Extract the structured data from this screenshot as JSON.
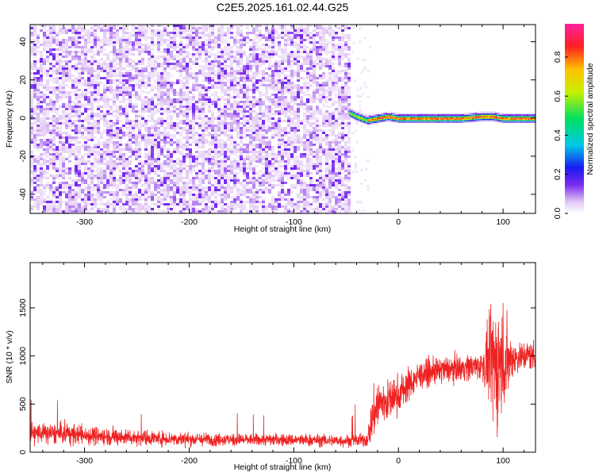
{
  "title": "C2E5.2025.161.02.44.G25",
  "chart_data": [
    {
      "type": "heatmap",
      "xlabel": "Height of straight line (km)",
      "ylabel": "Frequency (Hz)",
      "xlim": [
        -352,
        131
      ],
      "ylim": [
        -50,
        49
      ],
      "xticks": [
        -300,
        -200,
        -100,
        0,
        100
      ],
      "yticks": [
        -40,
        -20,
        0,
        20,
        40
      ],
      "xtick_labels": [
        "-300",
        "-200",
        "-100",
        "0",
        "100"
      ],
      "ytick_labels": [
        "-40",
        "-20",
        "0",
        "20",
        "40"
      ],
      "colorbar": {
        "label": "Normalized spectral amplitude",
        "range": [
          0,
          0.97
        ],
        "ticks": [
          0.0,
          0.2,
          0.4,
          0.6,
          0.8
        ],
        "tick_labels": [
          "0.0",
          "0.2",
          "0.4",
          "0.6",
          "0.8"
        ]
      },
      "regions": [
        {
          "x_range": [
            -352,
            -47
          ],
          "freq_range": [
            -50,
            49
          ],
          "amplitude_range": [
            0.0,
            0.15
          ]
        },
        {
          "x_range": [
            -47,
            131
          ],
          "freq_range": [
            -4,
            4
          ],
          "amplitude_range": [
            0.2,
            0.97
          ]
        }
      ],
      "ridge": {
        "x": [
          -47,
          -40,
          -30,
          -20,
          -10,
          0,
          10,
          20,
          40,
          60,
          80,
          90,
          100,
          110,
          131
        ],
        "freq": [
          3,
          1,
          -1,
          0,
          1,
          0,
          0,
          0,
          0,
          0,
          1,
          1,
          0,
          0,
          0
        ]
      },
      "grid": false
    },
    {
      "type": "line",
      "xlabel": "Height of straight line (km)",
      "ylabel": "SNR (10 * v/v)",
      "xlim": [
        -352,
        131
      ],
      "ylim": [
        0,
        1970
      ],
      "xticks": [
        -300,
        -200,
        -100,
        0,
        100
      ],
      "yticks": [
        0,
        500,
        1000,
        1500
      ],
      "xtick_labels": [
        "-300",
        "-200",
        "-100",
        "0",
        "100"
      ],
      "ytick_labels": [
        "0",
        "500",
        "1000",
        "1500"
      ],
      "color": "#ee2222",
      "x": [
        -352,
        -320,
        -280,
        -240,
        -200,
        -160,
        -120,
        -80,
        -60,
        -40,
        -30,
        -25,
        -20,
        -10,
        0,
        10,
        20,
        40,
        60,
        80,
        90,
        95,
        100,
        110,
        120,
        131
      ],
      "mean": [
        200,
        190,
        165,
        150,
        135,
        130,
        130,
        125,
        120,
        120,
        125,
        350,
        500,
        530,
        600,
        700,
        800,
        850,
        880,
        900,
        920,
        900,
        950,
        980,
        1000,
        1010
      ],
      "noise": [
        75,
        75,
        65,
        55,
        50,
        45,
        45,
        45,
        45,
        45,
        50,
        180,
        200,
        150,
        140,
        120,
        100,
        95,
        95,
        100,
        400,
        500,
        400,
        120,
        110,
        110
      ],
      "grid": false
    }
  ]
}
